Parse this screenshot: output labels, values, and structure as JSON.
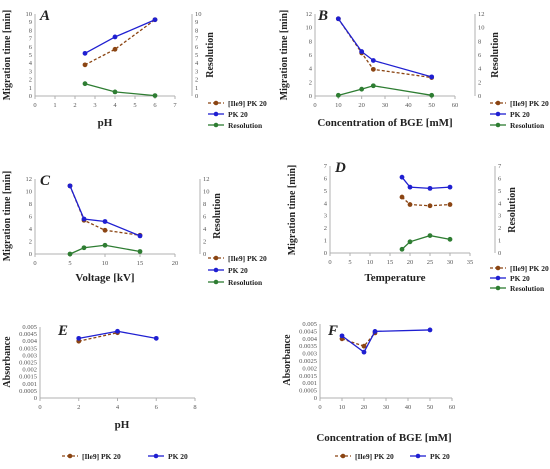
{
  "colors": {
    "ile9": "#8B4513",
    "pk20": "#1f1fd1",
    "resolution": "#2e7d32",
    "axis": "#b0b0b0",
    "text": "#222222"
  },
  "chart_data": [
    {
      "id": "A",
      "type": "line",
      "panel_letter": "A",
      "xlabel": "pH",
      "ylabel": "Migration time [min]",
      "y2label": "Resolution",
      "xlim": [
        0,
        7
      ],
      "xticks": [
        0,
        1,
        2,
        3,
        4,
        5,
        6,
        7
      ],
      "ylim": [
        0,
        10
      ],
      "yticks": [
        0,
        1,
        2,
        3,
        4,
        5,
        6,
        7,
        8,
        9,
        10
      ],
      "y2lim": [
        0,
        10
      ],
      "y2ticks": [
        0,
        1,
        2,
        3,
        4,
        5,
        6,
        7,
        8,
        9,
        10
      ],
      "legend": "right",
      "grid": false,
      "series": [
        {
          "name": "[Ile9] PK 20",
          "style": "ile9",
          "x": [
            2.5,
            4,
            6
          ],
          "y": [
            3.8,
            5.7,
            9.3
          ]
        },
        {
          "name": "PK 20",
          "style": "pk20",
          "x": [
            2.5,
            4,
            6
          ],
          "y": [
            5.2,
            7.2,
            9.3
          ]
        },
        {
          "name": "Resolution",
          "style": "resolution",
          "x": [
            2.5,
            4,
            6
          ],
          "y": [
            1.5,
            0.5,
            0.05
          ]
        }
      ]
    },
    {
      "id": "B",
      "type": "line",
      "panel_letter": "B",
      "xlabel": "Concentration of BGE [mM]",
      "ylabel": "Migration time [min]",
      "y2label": "Resolution",
      "xlim": [
        0,
        60
      ],
      "xticks": [
        0,
        10,
        20,
        30,
        40,
        50,
        60
      ],
      "ylim": [
        0,
        12
      ],
      "yticks": [
        0,
        2,
        4,
        6,
        8,
        10,
        12
      ],
      "y2lim": [
        0,
        12
      ],
      "y2ticks": [
        0,
        2,
        4,
        6,
        8,
        10,
        12
      ],
      "legend": "right",
      "grid": false,
      "series": [
        {
          "name": "[Ile9] PK 20",
          "style": "ile9",
          "x": [
            10,
            20,
            25,
            50
          ],
          "y": [
            11.3,
            6.3,
            3.9,
            2.7
          ]
        },
        {
          "name": "PK 20",
          "style": "pk20",
          "x": [
            10,
            20,
            25,
            50
          ],
          "y": [
            11.3,
            6.5,
            5.2,
            2.8
          ]
        },
        {
          "name": "Resolution",
          "style": "resolution",
          "x": [
            10,
            20,
            25,
            50
          ],
          "y": [
            0.1,
            1.0,
            1.5,
            0.1
          ]
        }
      ]
    },
    {
      "id": "C",
      "type": "line",
      "panel_letter": "C",
      "xlabel": "Voltage [kV]",
      "ylabel": "Migration time [min]",
      "y2label": "Resolution",
      "xlim": [
        0,
        20
      ],
      "xticks": [
        0,
        5,
        10,
        15,
        20
      ],
      "ylim": [
        0,
        12
      ],
      "yticks": [
        0,
        2,
        4,
        6,
        8,
        10,
        12
      ],
      "y2lim": [
        0,
        12
      ],
      "y2ticks": [
        0,
        2,
        4,
        6,
        8,
        10,
        12
      ],
      "legend": "right",
      "grid": false,
      "series": [
        {
          "name": "[Ile9] PK 20",
          "style": "ile9",
          "x": [
            5,
            7,
            10,
            15
          ],
          "y": [
            10.9,
            5.4,
            3.8,
            3.0
          ]
        },
        {
          "name": "PK 20",
          "style": "pk20",
          "x": [
            5,
            7,
            10,
            15
          ],
          "y": [
            10.9,
            5.6,
            5.2,
            2.9
          ]
        },
        {
          "name": "Resolution",
          "style": "resolution",
          "x": [
            5,
            7,
            10,
            15
          ],
          "y": [
            0.0,
            1.0,
            1.4,
            0.4
          ]
        }
      ]
    },
    {
      "id": "D",
      "type": "line",
      "panel_letter": "D",
      "xlabel": "Temperature",
      "ylabel": "Migration time [min]",
      "y2label": "Resolution",
      "xlim": [
        0,
        35
      ],
      "xticks": [
        0,
        5,
        10,
        15,
        20,
        25,
        30,
        35
      ],
      "ylim": [
        0,
        7
      ],
      "yticks": [
        0,
        1,
        2,
        3,
        4,
        5,
        6,
        7
      ],
      "y2lim": [
        0,
        7
      ],
      "y2ticks": [
        0,
        1,
        2,
        3,
        4,
        5,
        6,
        7
      ],
      "legend": "right",
      "grid": false,
      "series": [
        {
          "name": "[Ile9] PK 20",
          "style": "ile9",
          "x": [
            18,
            20,
            25,
            30
          ],
          "y": [
            4.5,
            3.9,
            3.8,
            3.9
          ]
        },
        {
          "name": "PK 20",
          "style": "pk20",
          "x": [
            18,
            20,
            25,
            30
          ],
          "y": [
            6.1,
            5.3,
            5.2,
            5.3
          ]
        },
        {
          "name": "Resolution",
          "style": "resolution",
          "x": [
            18,
            20,
            25,
            30
          ],
          "y": [
            0.3,
            0.9,
            1.4,
            1.1
          ]
        }
      ]
    },
    {
      "id": "E",
      "type": "line",
      "panel_letter": "E",
      "xlabel": "pH",
      "ylabel": "Absorbance",
      "y2label": "",
      "xlim": [
        0,
        8
      ],
      "xticks": [
        0,
        2,
        4,
        6,
        8
      ],
      "ylim": [
        0,
        0.005
      ],
      "yticks": [
        0,
        0.0005,
        0.001,
        0.0015,
        0.002,
        0.0025,
        0.003,
        0.0035,
        0.004,
        0.0045,
        0.005
      ],
      "yticklabels": [
        "0",
        "0.0005",
        "0.001",
        "0.0015",
        "0.002",
        "0.0025",
        "0.003",
        "0.0035",
        "0.004",
        "0.0045",
        "0.005"
      ],
      "legend": "bottom",
      "grid": false,
      "series": [
        {
          "name": "[Ile9] PK 20",
          "style": "ile9",
          "x": [
            2,
            4
          ],
          "y": [
            0.004,
            0.0046
          ]
        },
        {
          "name": "PK 20",
          "style": "pk20",
          "x": [
            2,
            4,
            6
          ],
          "y": [
            0.0042,
            0.0047,
            0.0042
          ]
        }
      ]
    },
    {
      "id": "F",
      "type": "line",
      "panel_letter": "F",
      "xlabel": "Concentration of BGE [mM]",
      "ylabel": "Absorbance",
      "y2label": "",
      "xlim": [
        0,
        60
      ],
      "xticks": [
        0,
        10,
        20,
        30,
        40,
        50,
        60
      ],
      "ylim": [
        0,
        0.005
      ],
      "yticks": [
        0,
        0.0005,
        0.001,
        0.0015,
        0.002,
        0.0025,
        0.003,
        0.0035,
        0.004,
        0.0045,
        0.005
      ],
      "yticklabels": [
        "0",
        "0.0005",
        "0.001",
        "0.0015",
        "0.002",
        "0.0025",
        "0.003",
        "0.0035",
        "0.004",
        "0.0045",
        "0.005"
      ],
      "legend": "bottom",
      "grid": false,
      "series": [
        {
          "name": "[Ile9] PK 20",
          "style": "ile9",
          "x": [
            10,
            20,
            25
          ],
          "y": [
            0.004,
            0.0035,
            0.0044
          ]
        },
        {
          "name": "PK 20",
          "style": "pk20",
          "x": [
            10,
            20,
            25,
            50
          ],
          "y": [
            0.0042,
            0.0031,
            0.0045,
            0.0046
          ]
        }
      ]
    }
  ]
}
